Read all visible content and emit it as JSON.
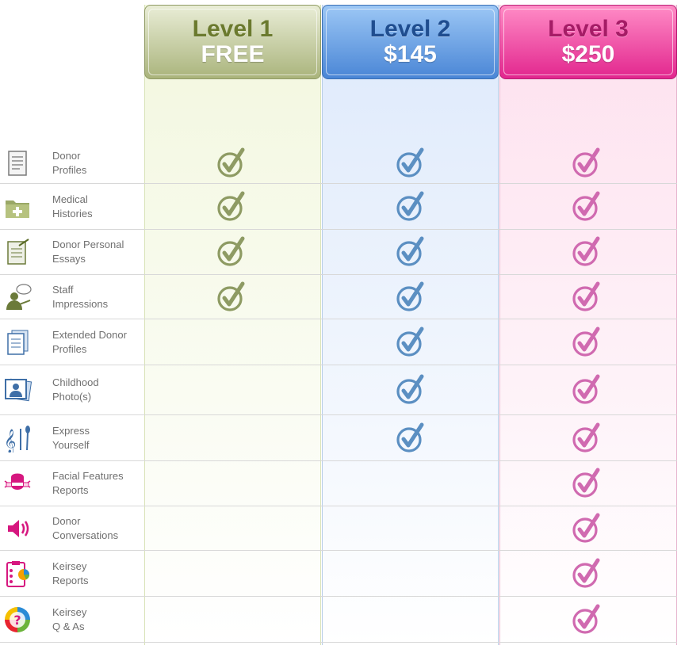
{
  "tiers": [
    {
      "level": "Level 1",
      "price": "FREE",
      "color": "#8e9b63"
    },
    {
      "level": "Level 2",
      "price": "$145",
      "color": "#5b8fc2"
    },
    {
      "level": "Level 3",
      "price": "$250",
      "color": "#d06ab0"
    }
  ],
  "features": [
    {
      "icon": "document-icon",
      "line1": "Donor",
      "line2": "Profiles",
      "tiers": [
        1,
        1,
        1
      ]
    },
    {
      "icon": "medical-folder-icon",
      "line1": "Medical",
      "line2": "Histories",
      "tiers": [
        1,
        1,
        1
      ]
    },
    {
      "icon": "essay-icon",
      "line1": "Donor Personal",
      "line2": "Essays",
      "tiers": [
        1,
        1,
        1
      ]
    },
    {
      "icon": "staff-speech-icon",
      "line1": "Staff",
      "line2": "Impressions",
      "tiers": [
        1,
        1,
        1
      ]
    },
    {
      "icon": "multi-document-icon",
      "line1": "Extended Donor",
      "line2": "Profiles",
      "tiers": [
        0,
        1,
        1
      ]
    },
    {
      "icon": "photos-icon",
      "line1": "Childhood",
      "line2": "Photo(s)",
      "tiers": [
        0,
        1,
        1
      ]
    },
    {
      "icon": "art-tools-icon",
      "line1": "Express",
      "line2": "Yourself",
      "tiers": [
        0,
        1,
        1
      ]
    },
    {
      "icon": "face-icon",
      "line1": "Facial Features",
      "line2": "Reports",
      "tiers": [
        0,
        0,
        1
      ]
    },
    {
      "icon": "speaker-icon",
      "line1": "Donor",
      "line2": "Conversations",
      "tiers": [
        0,
        0,
        1
      ]
    },
    {
      "icon": "clipboard-chart-icon",
      "line1": "Keirsey",
      "line2": "Reports",
      "tiers": [
        0,
        0,
        1
      ]
    },
    {
      "icon": "question-icon",
      "line1": "Keirsey",
      "line2": "Q & As",
      "tiers": [
        0,
        0,
        1
      ]
    }
  ]
}
